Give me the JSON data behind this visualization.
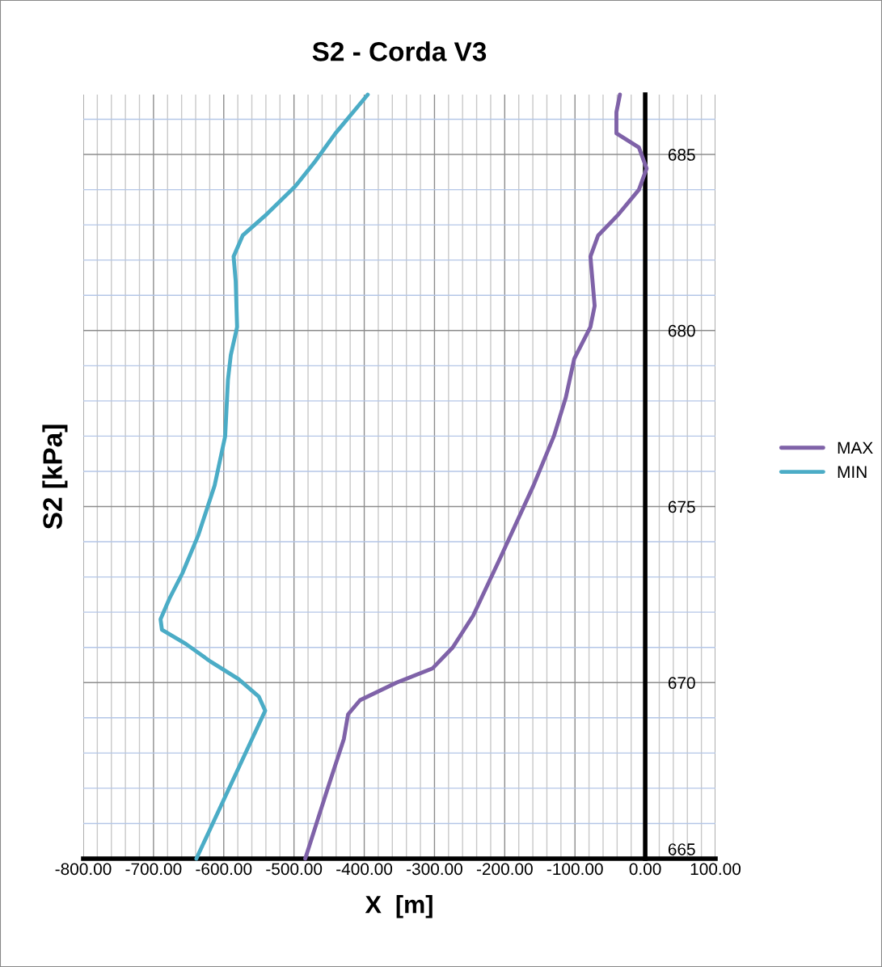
{
  "chart_data": {
    "type": "line",
    "title": "S2 - Corda V3",
    "xlabel": "X  [m]",
    "ylabel": "S2 [kPa]",
    "xlim": [
      -800,
      100
    ],
    "ylim": [
      665,
      686.7
    ],
    "xticks": [
      {
        "value": -800,
        "label": "-800.00"
      },
      {
        "value": -780,
        "label": null
      },
      {
        "value": -760,
        "label": null
      },
      {
        "value": -740,
        "label": null
      },
      {
        "value": -720,
        "label": null
      },
      {
        "value": -700,
        "label": "-700.00"
      },
      {
        "value": -680,
        "label": null
      },
      {
        "value": -660,
        "label": null
      },
      {
        "value": -640,
        "label": null
      },
      {
        "value": -620,
        "label": null
      },
      {
        "value": -600,
        "label": "-600.00"
      },
      {
        "value": -580,
        "label": null
      },
      {
        "value": -560,
        "label": null
      },
      {
        "value": -540,
        "label": null
      },
      {
        "value": -520,
        "label": null
      },
      {
        "value": -500,
        "label": "-500.00"
      },
      {
        "value": -480,
        "label": null
      },
      {
        "value": -460,
        "label": null
      },
      {
        "value": -440,
        "label": null
      },
      {
        "value": -420,
        "label": null
      },
      {
        "value": -400,
        "label": "-400.00"
      },
      {
        "value": -380,
        "label": null
      },
      {
        "value": -360,
        "label": null
      },
      {
        "value": -340,
        "label": null
      },
      {
        "value": -320,
        "label": null
      },
      {
        "value": -300,
        "label": "-300.00"
      },
      {
        "value": -280,
        "label": null
      },
      {
        "value": -260,
        "label": null
      },
      {
        "value": -240,
        "label": null
      },
      {
        "value": -220,
        "label": null
      },
      {
        "value": -200,
        "label": "-200.00"
      },
      {
        "value": -180,
        "label": null
      },
      {
        "value": -160,
        "label": null
      },
      {
        "value": -140,
        "label": null
      },
      {
        "value": -120,
        "label": null
      },
      {
        "value": -100,
        "label": "-100.00"
      },
      {
        "value": -80,
        "label": null
      },
      {
        "value": -60,
        "label": null
      },
      {
        "value": -40,
        "label": null
      },
      {
        "value": -20,
        "label": null
      },
      {
        "value": 0,
        "label": "0.00"
      },
      {
        "value": 20,
        "label": null
      },
      {
        "value": 40,
        "label": null
      },
      {
        "value": 60,
        "label": null
      },
      {
        "value": 80,
        "label": null
      },
      {
        "value": 100,
        "label": "100.00"
      }
    ],
    "yticks": [
      665,
      {
        "value": 666,
        "label": null
      },
      {
        "value": 667,
        "label": null
      },
      {
        "value": 668,
        "label": null
      },
      {
        "value": 669,
        "label": null
      },
      670,
      {
        "value": 671,
        "label": null
      },
      {
        "value": 672,
        "label": null
      },
      {
        "value": 673,
        "label": null
      },
      {
        "value": 674,
        "label": null
      },
      675,
      {
        "value": 676,
        "label": null
      },
      {
        "value": 677,
        "label": null
      },
      {
        "value": 678,
        "label": null
      },
      {
        "value": 679,
        "label": null
      },
      680,
      {
        "value": 681,
        "label": null
      },
      {
        "value": 682,
        "label": null
      },
      {
        "value": 683,
        "label": null
      },
      {
        "value": 684,
        "label": null
      },
      685,
      {
        "value": 686,
        "label": null
      }
    ],
    "grid": true,
    "legend": "right",
    "marker": "none",
    "line_style": "solid",
    "series": [
      {
        "name": "MAX",
        "color": "#7f62a8",
        "x": [
          -484,
          -452,
          -429,
          -423,
          -406,
          -354,
          -303,
          -274,
          -245,
          -205,
          -159,
          -130,
          -113,
          -101,
          -78,
          -72,
          -78,
          -67,
          -38,
          -9,
          2,
          -9,
          -41,
          -41,
          -36
        ],
        "values": [
          665,
          667,
          668.4,
          669.1,
          669.5,
          670,
          670.4,
          671,
          671.9,
          673.6,
          675.6,
          677,
          678.1,
          679.2,
          680.1,
          680.7,
          682.1,
          682.7,
          683.3,
          684,
          684.6,
          685.2,
          685.6,
          686.2,
          686.7
        ]
      },
      {
        "name": "MIN",
        "color": "#4bacc6",
        "x": [
          -639,
          -562,
          -541,
          -550,
          -579,
          -619,
          -654,
          -688,
          -690,
          -677,
          -659,
          -636,
          -613,
          -598,
          -594,
          -590,
          -581,
          -583,
          -586,
          -573,
          -539,
          -498,
          -470,
          -441,
          -395
        ],
        "values": [
          665,
          668.3,
          669.2,
          669.6,
          670.1,
          670.6,
          671.1,
          671.5,
          671.8,
          672.4,
          673.1,
          674.2,
          675.6,
          677,
          678.6,
          679.3,
          680.1,
          681.4,
          682.1,
          682.7,
          683.3,
          684.1,
          684.8,
          685.6,
          686.7
        ]
      }
    ]
  }
}
